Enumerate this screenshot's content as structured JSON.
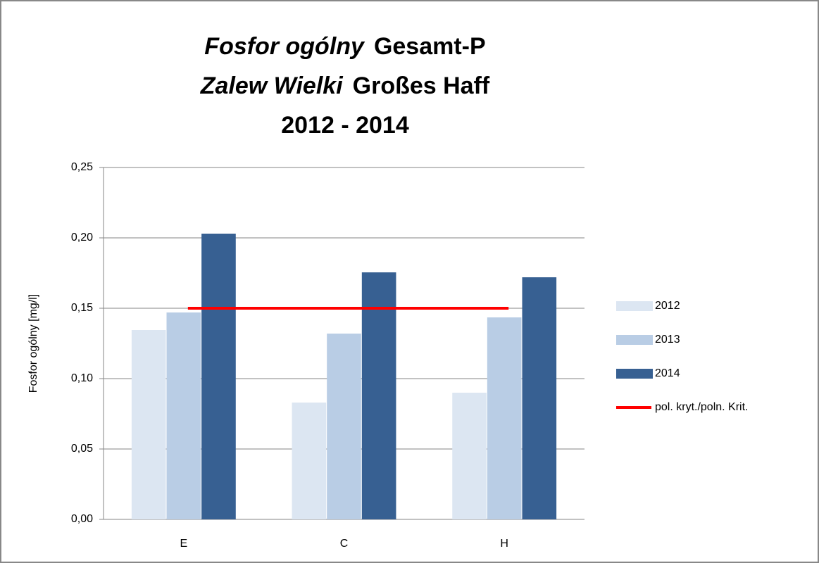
{
  "chart_data": {
    "type": "bar",
    "title": [
      [
        "Fosfor ogólny",
        "Gesamt-P"
      ],
      [
        "Zalew Wielki",
        "Großes Haff"
      ],
      [
        "2012 - 2014"
      ]
    ],
    "y_label": "Fosfor ogólny [mg/l]",
    "categories": [
      "E",
      "C",
      "H"
    ],
    "series": [
      {
        "name": "2012",
        "color": "#dce6f2",
        "values": [
          0.1345,
          0.083,
          0.09
        ]
      },
      {
        "name": "2013",
        "color": "#b9cde5",
        "values": [
          0.147,
          0.132,
          0.1435
        ]
      },
      {
        "name": "2014",
        "color": "#376092",
        "values": [
          0.203,
          0.1755,
          0.172
        ]
      },
      {
        "name": "pol. kryt./poln. Krit.",
        "color": "#ff0000",
        "type": "line",
        "values": [
          0.15,
          0.15,
          0.15
        ]
      }
    ],
    "ylim": [
      0,
      0.25
    ],
    "yticks": [
      {
        "value": 0,
        "label": "0,00"
      },
      {
        "value": 0.05,
        "label": "0,05"
      },
      {
        "value": 0.1,
        "label": "0,10"
      },
      {
        "value": 0.15,
        "label": "0,15"
      },
      {
        "value": 0.2,
        "label": "0,20"
      },
      {
        "value": 0.25,
        "label": "0,25"
      }
    ],
    "grid": true,
    "legend": "right"
  }
}
